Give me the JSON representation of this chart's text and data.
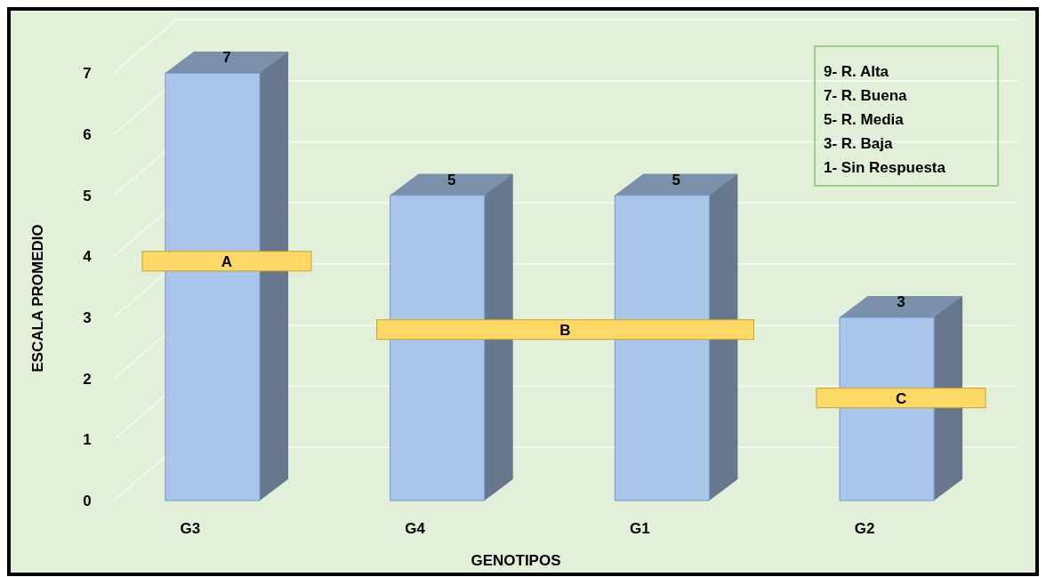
{
  "chart_data": {
    "type": "bar",
    "xlabel": "GENOTIPOS",
    "ylabel": "ESCALA PROMEDIO",
    "categories": [
      "G3",
      "G4",
      "G1",
      "G2"
    ],
    "values": [
      7,
      5,
      5,
      3
    ],
    "color": "#a9c6ea",
    "ylim": [
      0,
      7.5
    ],
    "yticks": [
      0,
      1,
      2,
      3,
      4,
      5,
      6,
      7
    ],
    "grid": "y",
    "data_labels": true,
    "annotations": [
      "A",
      "B",
      "C",
      "9- R. Alta",
      "7- R. Buena",
      "5- R. Media",
      "3- R. Baja",
      "1- Sin Respuesta"
    ]
  }
}
